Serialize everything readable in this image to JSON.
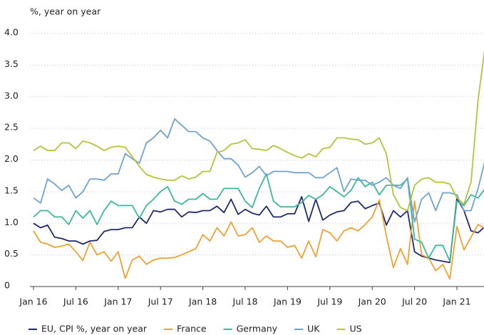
{
  "chart_data": {
    "type": "line",
    "y_axis_label": "%, year on year",
    "categories": [
      "Jan 16",
      null,
      null,
      null,
      null,
      null,
      "Jul 16",
      null,
      null,
      null,
      null,
      null,
      "Jan 17",
      null,
      null,
      null,
      null,
      null,
      "Jul 17",
      null,
      null,
      null,
      null,
      null,
      "Jan 18",
      null,
      null,
      null,
      null,
      null,
      "Jul 18",
      null,
      null,
      null,
      null,
      null,
      "Jan 19",
      null,
      null,
      null,
      null,
      null,
      "Jul 19",
      null,
      null,
      null,
      null,
      null,
      "Jan 20",
      null,
      null,
      null,
      null,
      null,
      "Jul 20",
      null,
      null,
      null,
      null,
      null,
      "Jan 21",
      null,
      null,
      null,
      null
    ],
    "ylim": [
      0,
      4
    ],
    "yticks": [
      0,
      0.5,
      {
        "value": 1,
        "label": "1.0"
      },
      1.5,
      {
        "value": 2,
        "label": "2.0"
      },
      2.5,
      {
        "value": 3,
        "label": "3.0"
      },
      3.5,
      {
        "value": 4,
        "label": "4.0"
      }
    ],
    "grid": true,
    "legend": "bottom",
    "series": [
      {
        "name": "EU, CPI %, year on year",
        "color": "#1f2a6e",
        "values": [
          1.0,
          0.93,
          0.97,
          0.78,
          0.76,
          0.72,
          0.72,
          0.67,
          0.72,
          0.73,
          0.87,
          0.9,
          0.9,
          0.93,
          0.93,
          1.1,
          1.0,
          1.2,
          1.18,
          1.22,
          1.22,
          1.1,
          1.18,
          1.17,
          1.2,
          1.2,
          1.27,
          1.17,
          1.38,
          1.14,
          1.22,
          1.16,
          1.13,
          1.27,
          1.1,
          1.1,
          1.15,
          1.15,
          1.42,
          1.03,
          1.38,
          1.05,
          1.13,
          1.18,
          1.2,
          1.33,
          1.35,
          1.23,
          1.28,
          1.32,
          0.97,
          1.2,
          1.1,
          1.2,
          0.55,
          0.48,
          0.45,
          0.42,
          0.4,
          0.38,
          1.4,
          1.2,
          0.88,
          0.85,
          0.95
        ]
      },
      {
        "name": "France",
        "color": "#f0a132",
        "values": [
          0.88,
          0.7,
          0.67,
          0.62,
          0.64,
          0.67,
          0.55,
          0.41,
          0.7,
          0.5,
          0.55,
          0.4,
          0.55,
          0.13,
          0.42,
          0.48,
          0.35,
          0.42,
          0.45,
          0.45,
          0.46,
          0.5,
          0.55,
          0.6,
          0.82,
          0.72,
          0.93,
          0.8,
          1.02,
          0.8,
          0.82,
          0.93,
          0.7,
          0.8,
          0.72,
          0.72,
          0.62,
          0.65,
          0.45,
          0.72,
          0.47,
          0.9,
          0.85,
          0.72,
          0.88,
          0.93,
          0.88,
          0.98,
          1.1,
          1.37,
          0.8,
          0.3,
          0.6,
          0.35,
          1.35,
          0.5,
          0.45,
          0.25,
          0.35,
          0.12,
          0.95,
          0.58,
          0.78,
          0.98,
          0.92
        ]
      },
      {
        "name": "Germany",
        "color": "#3db79a",
        "values": [
          1.1,
          1.2,
          1.2,
          1.1,
          1.1,
          0.98,
          1.2,
          1.08,
          1.2,
          0.98,
          1.2,
          1.35,
          1.28,
          1.28,
          1.28,
          1.08,
          1.28,
          1.38,
          1.5,
          1.58,
          1.35,
          1.3,
          1.38,
          1.38,
          1.47,
          1.38,
          1.38,
          1.55,
          1.55,
          1.55,
          1.35,
          1.25,
          1.55,
          1.78,
          1.35,
          1.26,
          1.26,
          1.26,
          1.33,
          1.44,
          1.38,
          1.45,
          1.58,
          1.5,
          1.42,
          1.52,
          1.72,
          1.58,
          1.65,
          1.45,
          1.6,
          1.6,
          1.6,
          1.7,
          0.75,
          0.7,
          0.45,
          0.65,
          0.65,
          0.4,
          1.35,
          1.28,
          1.45,
          1.4,
          1.55
        ]
      },
      {
        "name": "UK",
        "color": "#6fa2d2",
        "values": [
          1.4,
          1.32,
          1.7,
          1.62,
          1.52,
          1.6,
          1.4,
          1.5,
          1.7,
          1.7,
          1.68,
          1.78,
          1.78,
          2.1,
          2.02,
          1.95,
          2.27,
          2.35,
          2.47,
          2.35,
          2.65,
          2.55,
          2.45,
          2.45,
          2.35,
          2.3,
          2.15,
          2.02,
          2.02,
          1.92,
          1.73,
          1.8,
          1.9,
          1.75,
          1.82,
          1.82,
          1.82,
          1.8,
          1.8,
          1.8,
          1.72,
          1.72,
          1.8,
          1.88,
          1.5,
          1.7,
          1.68,
          1.68,
          1.6,
          1.65,
          1.72,
          1.6,
          1.55,
          1.72,
          1.02,
          1.38,
          1.48,
          1.2,
          1.48,
          1.48,
          1.45,
          1.2,
          1.2,
          1.55,
          2.0
        ]
      },
      {
        "name": "US",
        "color": "#b6c33a",
        "values": [
          2.15,
          2.22,
          2.15,
          2.15,
          2.27,
          2.27,
          2.18,
          2.3,
          2.27,
          2.22,
          2.15,
          2.2,
          2.22,
          2.2,
          2.05,
          1.9,
          1.77,
          1.73,
          1.7,
          1.68,
          1.68,
          1.75,
          1.7,
          1.73,
          1.82,
          1.82,
          2.12,
          2.15,
          2.25,
          2.27,
          2.32,
          2.18,
          2.17,
          2.15,
          2.23,
          2.18,
          2.12,
          2.07,
          2.03,
          2.1,
          2.05,
          2.18,
          2.2,
          2.35,
          2.35,
          2.33,
          2.32,
          2.25,
          2.27,
          2.35,
          2.1,
          1.45,
          1.25,
          1.2,
          1.6,
          1.7,
          1.72,
          1.65,
          1.65,
          1.62,
          1.4,
          1.3,
          1.65,
          2.95,
          3.8
        ]
      }
    ]
  }
}
